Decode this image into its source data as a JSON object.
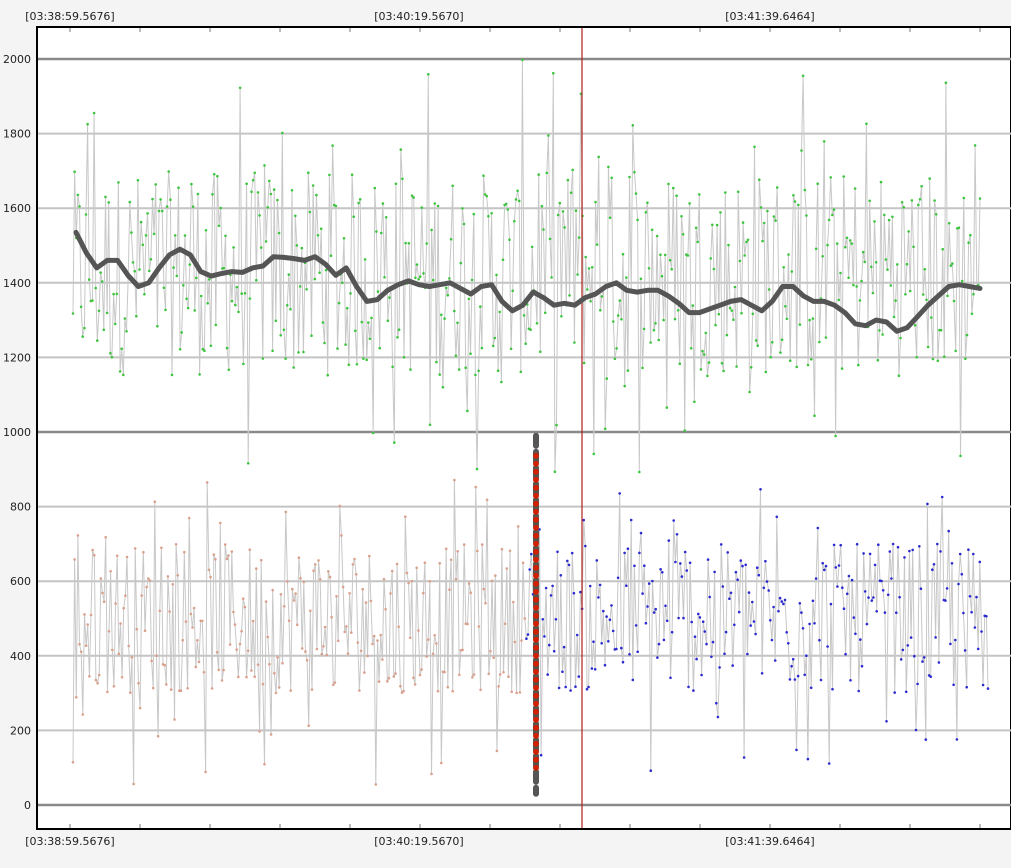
{
  "chart_data": {
    "type": "line",
    "x_tick_labels": [
      "[03:38:59.5676]",
      "[03:40:19.5670]",
      "[03:41:39.6464]"
    ],
    "y_ticks": [
      0,
      200,
      400,
      600,
      800,
      1000,
      1200,
      1400,
      1600,
      1800,
      2000
    ],
    "ylim": [
      0,
      2000
    ],
    "grid": true,
    "colors": {
      "upper_points": "#3ec43e",
      "lower_points_before": "#d9a08c",
      "lower_points_after": "#2b2bd0",
      "raw_line": "#c8c8c8",
      "moving_average": "#555555",
      "cursor_line": "#b02020",
      "marker_band": "#cc2200",
      "marker_band_edge": "#555555"
    },
    "series": [
      {
        "values_summary": "noisy upper signal, about 900 to 2000",
        "range": [
          880,
          2000
        ],
        "typical": [
          1150,
          1700
        ]
      },
      {
        "values_summary": "noisy lower signal, about 50 to 880",
        "range": [
          50,
          880
        ],
        "typical": [
          300,
          700
        ]
      },
      {
        "values_summary": "smoothed upper signal",
        "points": [
          1535,
          1480,
          1440,
          1460,
          1460,
          1420,
          1390,
          1400,
          1440,
          1475,
          1490,
          1475,
          1430,
          1418,
          1425,
          1430,
          1428,
          1440,
          1445,
          1470,
          1468,
          1465,
          1460,
          1470,
          1450,
          1420,
          1440,
          1390,
          1350,
          1355,
          1380,
          1395,
          1405,
          1395,
          1390,
          1395,
          1400,
          1385,
          1370,
          1390,
          1395,
          1350,
          1325,
          1340,
          1375,
          1360,
          1340,
          1345,
          1340,
          1360,
          1370,
          1390,
          1400,
          1380,
          1375,
          1380,
          1380,
          1365,
          1345,
          1320,
          1320,
          1330,
          1340,
          1350,
          1355,
          1340,
          1325,
          1350,
          1390,
          1390,
          1365,
          1350,
          1350,
          1340,
          1320,
          1290,
          1285,
          1300,
          1295,
          1270,
          1280,
          1310,
          1340,
          1365,
          1390,
          1395,
          1390,
          1385
        ]
      }
    ],
    "marker": {
      "type": "vertical band",
      "range": [
        30,
        990
      ]
    }
  }
}
